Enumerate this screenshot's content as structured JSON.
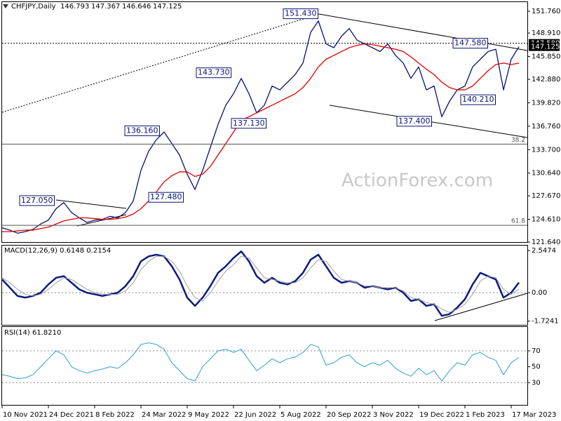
{
  "chart_data": [
    {
      "type": "line",
      "title": "CHFJPY,Daily",
      "ohlc": [
        146.793,
        147.367,
        146.646,
        147.125
      ],
      "watermark": "ActionForex.com",
      "categories": [
        "10 Nov 2021",
        null,
        null,
        null,
        null,
        null,
        "24 Dec 2021",
        null,
        null,
        null,
        null,
        null,
        "8 Feb 2022",
        null,
        null,
        null,
        null,
        null,
        "24 Mar 2022",
        null,
        null,
        null,
        null,
        null,
        "9 May 2022",
        null,
        null,
        null,
        null,
        null,
        "22 Jun 2022",
        null,
        null,
        null,
        null,
        null,
        "5 Aug 2022",
        null,
        null,
        null,
        null,
        null,
        "20 Sep 2022",
        null,
        null,
        null,
        null,
        null,
        "3 Nov 2022",
        null,
        null,
        null,
        null,
        null,
        "19 Dec 2022",
        null,
        null,
        null,
        null,
        null,
        "1 Feb 2023",
        null,
        null,
        null,
        null,
        null,
        "17 Mar 2023",
        null
      ],
      "series": [
        {
          "color": "#0a1172",
          "values": [
            123.5,
            123.2,
            122.8,
            123.0,
            123.3,
            124.0,
            124.5,
            126.0,
            126.8,
            125.5,
            124.8,
            124.2,
            124.5,
            124.6,
            125.0,
            124.8,
            125.5,
            127.0,
            131.0,
            133.5,
            135.0,
            136.0,
            134.5,
            133.0,
            130.5,
            128.5,
            131.0,
            134.0,
            137.0,
            139.5,
            141.0,
            143.0,
            141.0,
            138.5,
            139.5,
            142.0,
            141.5,
            142.5,
            143.5,
            145.0,
            149.0,
            150.5,
            147.5,
            147.0,
            148.5,
            149.5,
            148.0,
            147.5,
            147.0,
            146.5,
            147.5,
            146.0,
            145.0,
            143.0,
            144.5,
            141.5,
            142.0,
            138.0,
            140.0,
            141.5,
            142.0,
            144.5,
            145.5,
            146.5,
            146.8,
            141.5,
            145.5,
            147.125
          ]
        },
        {
          "color": "#e00000",
          "values": [
            123.0,
            123.0,
            123.1,
            123.2,
            123.2,
            123.4,
            123.6,
            124.0,
            124.4,
            124.6,
            124.8,
            124.8,
            124.7,
            124.6,
            124.6,
            124.7,
            124.9,
            125.3,
            126.0,
            127.0,
            128.2,
            129.5,
            130.3,
            130.8,
            130.8,
            130.2,
            130.5,
            131.5,
            133.0,
            134.5,
            136.0,
            137.5,
            138.0,
            138.5,
            139.0,
            139.5,
            140.0,
            140.5,
            141.0,
            141.8,
            143.0,
            144.5,
            145.5,
            146.0,
            146.5,
            147.0,
            147.3,
            147.5,
            147.4,
            147.2,
            147.0,
            146.8,
            146.5,
            145.8,
            145.0,
            144.2,
            143.5,
            142.5,
            141.8,
            141.5,
            141.5,
            142.0,
            143.0,
            144.0,
            144.8,
            145.0,
            144.8,
            145.0
          ]
        }
      ],
      "ylim": [
        121.64,
        152.95
      ],
      "yticks": [
        {
          "value": 151.76,
          "label": "151.760"
        },
        {
          "value": 148.91,
          "label": "148.910"
        },
        {
          "value": 145.85,
          "label": "145.850"
        },
        {
          "value": 142.88,
          "label": "142.880"
        },
        {
          "value": 139.82,
          "label": "139.820"
        },
        {
          "value": 136.76,
          "label": "136.760"
        },
        {
          "value": 133.7,
          "label": "133.700"
        },
        {
          "value": 130.64,
          "label": "130.640"
        },
        {
          "value": 127.67,
          "label": "127.670"
        },
        {
          "value": 124.61,
          "label": "124.610"
        },
        {
          "value": 121.64,
          "label": "121.640"
        }
      ],
      "annotations": [
        {
          "value": 151.43,
          "label": "151.430"
        },
        {
          "value": 147.58,
          "label": "147.580"
        },
        {
          "value": 143.73,
          "label": "143.730"
        },
        {
          "value": 137.13,
          "label": "137.130"
        },
        {
          "value": 136.16,
          "label": "136.160"
        },
        {
          "value": 127.48,
          "label": "127.480"
        },
        {
          "value": 127.05,
          "label": "127.050"
        },
        {
          "value": 137.4,
          "label": "137.400"
        },
        {
          "value": 140.21,
          "label": "140.210"
        }
      ],
      "fib_levels": [
        {
          "ratio": 38.2,
          "price": 134.42
        },
        {
          "ratio": 61.8,
          "price": 123.83
        }
      ],
      "price_labels": [
        {
          "value": 147.58,
          "label": "147.580"
        },
        147.125
      ]
    },
    {
      "type": "line",
      "title": "MACD(12,26,9) 0.6148 0.2154",
      "series": [
        {
          "color": "#0d1a80",
          "width": 2.5,
          "values": [
            0.8,
            0.3,
            -0.2,
            -0.3,
            -0.2,
            0.0,
            0.5,
            0.9,
            1.0,
            0.6,
            0.2,
            0.0,
            -0.1,
            -0.2,
            -0.1,
            0.0,
            0.4,
            1.0,
            1.9,
            2.2,
            2.3,
            2.2,
            1.6,
            0.8,
            -0.3,
            -0.8,
            -0.3,
            0.4,
            1.2,
            1.6,
            2.1,
            2.5,
            1.9,
            1.0,
            0.6,
            0.9,
            0.6,
            0.5,
            0.7,
            1.2,
            2.0,
            2.3,
            1.6,
            0.9,
            0.6,
            0.7,
            0.6,
            0.3,
            0.4,
            0.3,
            0.2,
            0.3,
            0.0,
            -0.5,
            -0.4,
            -0.8,
            -0.7,
            -1.4,
            -1.3,
            -0.9,
            -0.4,
            0.5,
            1.2,
            1.0,
            0.8,
            -0.3,
            0.0,
            0.6148
          ]
        },
        {
          "color": "#a0a0a0",
          "width": 1,
          "values": [
            0.9,
            0.6,
            0.2,
            -0.1,
            -0.2,
            -0.1,
            0.2,
            0.6,
            0.9,
            0.8,
            0.5,
            0.2,
            0.0,
            -0.1,
            -0.1,
            -0.1,
            0.1,
            0.6,
            1.4,
            1.9,
            2.2,
            2.2,
            1.9,
            1.3,
            0.4,
            -0.3,
            -0.5,
            0.0,
            0.7,
            1.3,
            1.7,
            2.2,
            2.1,
            1.5,
            0.9,
            0.8,
            0.7,
            0.6,
            0.6,
            0.9,
            1.5,
            2.0,
            1.9,
            1.3,
            0.8,
            0.7,
            0.6,
            0.4,
            0.4,
            0.3,
            0.3,
            0.3,
            0.1,
            -0.3,
            -0.4,
            -0.6,
            -0.7,
            -1.0,
            -1.2,
            -1.0,
            -0.7,
            -0.1,
            0.7,
            1.0,
            0.9,
            0.2,
            -0.1,
            0.2154
          ]
        }
      ],
      "ylim": [
        -1.95,
        2.85
      ],
      "yticks": [
        2.5474,
        {
          "value": 0,
          "label": "0.00"
        },
        -1.7241
      ],
      "grid_levels": [
        0
      ]
    },
    {
      "type": "line",
      "title": "RSI(14) 61.8210",
      "series": [
        {
          "color": "#2e9fd6",
          "width": 1,
          "values": [
            40,
            38,
            35,
            36,
            40,
            50,
            60,
            70,
            65,
            50,
            45,
            42,
            45,
            47,
            50,
            48,
            55,
            65,
            78,
            80,
            78,
            72,
            55,
            45,
            35,
            32,
            50,
            60,
            70,
            72,
            68,
            72,
            58,
            45,
            52,
            60,
            55,
            60,
            62,
            68,
            78,
            75,
            52,
            55,
            62,
            65,
            55,
            50,
            55,
            52,
            58,
            48,
            42,
            38,
            48,
            40,
            45,
            32,
            45,
            55,
            52,
            65,
            68,
            62,
            58,
            40,
            55,
            61.821
          ]
        }
      ],
      "ylim": [
        2,
        100
      ],
      "yticks": [
        70,
        50,
        30
      ],
      "grid_levels": [
        70,
        30
      ]
    }
  ]
}
